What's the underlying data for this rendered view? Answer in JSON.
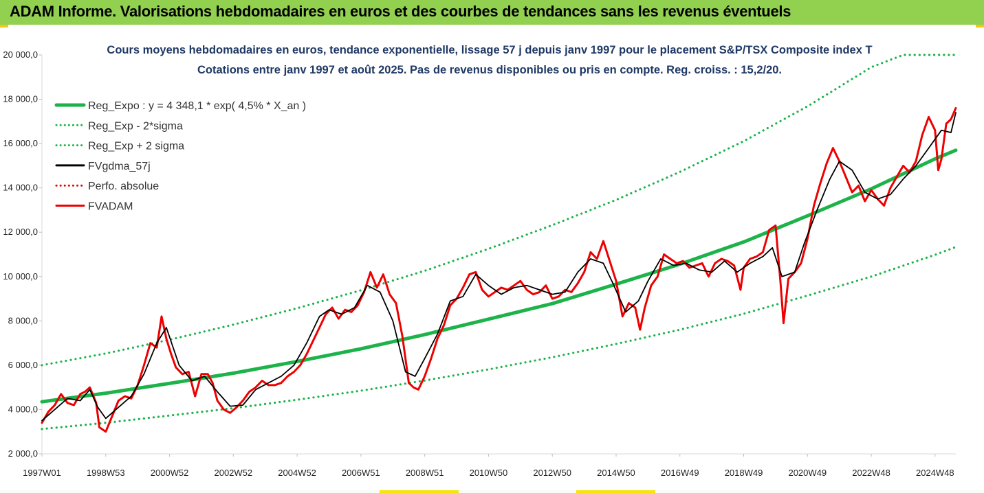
{
  "header": {
    "title": "ADAM Informe. Valorisations hebdomadaires en euros et des courbes de tendances sans les revenus éventuels"
  },
  "colors": {
    "header_bg": "#92d050",
    "trend": "#1db34a",
    "band": "#1db34a",
    "smooth": "#000000",
    "price": "#ee0000",
    "title": "#1f3864"
  },
  "chart_data": {
    "type": "line",
    "title": "Cours moyens hebdomadaires en euros, tendance exponentielle, lissage 57 j depuis janv 1997  pour le placement S&P/TSX Composite index T",
    "subtitle": "Cotations entre janv 1997 et août 2025. Pas de revenus disponibles ou pris en compte. Reg. croiss. : 15,2/20.",
    "xlabel": "",
    "ylabel": "",
    "xlim": [
      1997.0,
      2025.65
    ],
    "ylim": [
      2000,
      20000
    ],
    "yticks": [
      "2 000,0",
      "4 000,0",
      "6 000,0",
      "8 000,0",
      "10 000,0",
      "12 000,0",
      "14 000,0",
      "16 000,0",
      "18 000,0",
      "20 000,0"
    ],
    "ytick_values": [
      2000,
      4000,
      6000,
      8000,
      10000,
      12000,
      14000,
      16000,
      18000,
      20000
    ],
    "xticks": [
      "1997W01",
      "1998W53",
      "2000W52",
      "2002W52",
      "2004W52",
      "2006W51",
      "2008W51",
      "2010W50",
      "2012W50",
      "2014W50",
      "2016W49",
      "2018W49",
      "2020W49",
      "2022W48",
      "2024W48"
    ],
    "xtick_values": [
      1997.0,
      1999.0,
      2001.0,
      2003.0,
      2005.0,
      2007.0,
      2009.0,
      2011.0,
      2013.0,
      2015.0,
      2017.0,
      2019.0,
      2021.0,
      2023.0,
      2025.0
    ],
    "grid": false,
    "legend_position": "top-left",
    "legend": [
      "Reg_Expo : y = 4 348,1 * exp( 4,5% *  X_an )",
      "Reg_Exp - 2*sigma",
      "Reg_Exp + 2 sigma",
      "FVgdma_57j",
      "Perfo. absolue",
      "FVADAM"
    ],
    "series": [
      {
        "name": "Reg_Expo : y = 4 348,1 * exp( 4,5% *  X_an )",
        "style": "solid-thick",
        "color": "#1db34a",
        "x": [
          1997,
          1999,
          2001,
          2003,
          2005,
          2007,
          2009,
          2011,
          2013,
          2015,
          2017,
          2019,
          2021,
          2023,
          2025,
          2025.65
        ],
        "y": [
          4350,
          4740,
          5180,
          5640,
          6170,
          6740,
          7380,
          8080,
          8780,
          9660,
          10560,
          11560,
          12740,
          13960,
          15310,
          15700
        ]
      },
      {
        "name": "Reg_Exp - 2*sigma",
        "style": "dotted",
        "color": "#1db34a",
        "x": [
          1997,
          1999,
          2001,
          2003,
          2005,
          2007,
          2009,
          2011,
          2013,
          2015,
          2017,
          2019,
          2021,
          2023,
          2025,
          2025.65
        ],
        "y": [
          3120,
          3400,
          3730,
          4060,
          4440,
          4850,
          5310,
          5810,
          6360,
          6960,
          7600,
          8320,
          9140,
          10000,
          10980,
          11330
        ]
      },
      {
        "name": "Reg_Exp + 2 sigma",
        "style": "dotted",
        "color": "#1db34a",
        "x": [
          1997,
          1999,
          2001,
          2003,
          2005,
          2007,
          2009,
          2011,
          2013,
          2015,
          2017,
          2019,
          2021,
          2022,
          2023,
          2024,
          2025,
          2025.65
        ],
        "y": [
          6000,
          6530,
          7150,
          7830,
          8570,
          9380,
          10260,
          11250,
          12320,
          13460,
          14720,
          16110,
          17680,
          18560,
          19450,
          20000,
          20000,
          20000
        ]
      },
      {
        "name": "FVgdma_57j",
        "style": "solid",
        "color": "#000000",
        "x": [
          1997.0,
          1997.4,
          1997.8,
          1998.2,
          1998.5,
          1998.75,
          1999.0,
          1999.4,
          1999.8,
          2000.2,
          2000.6,
          2000.9,
          2001.3,
          2001.7,
          2002.1,
          2002.5,
          2002.9,
          2003.3,
          2003.7,
          2004.1,
          2004.5,
          2004.9,
          2005.3,
          2005.7,
          2006.0,
          2006.4,
          2006.8,
          2007.2,
          2007.6,
          2008.0,
          2008.4,
          2008.7,
          2009.0,
          2009.4,
          2009.8,
          2010.2,
          2010.6,
          2011.0,
          2011.4,
          2011.8,
          2012.2,
          2012.6,
          2013.0,
          2013.4,
          2013.8,
          2014.2,
          2014.6,
          2014.9,
          2015.3,
          2015.7,
          2016.0,
          2016.4,
          2016.8,
          2017.2,
          2017.6,
          2018.0,
          2018.4,
          2018.8,
          2019.2,
          2019.6,
          2019.9,
          2020.2,
          2020.6,
          2020.9,
          2021.3,
          2021.7,
          2022.0,
          2022.4,
          2022.8,
          2023.2,
          2023.6,
          2024.0,
          2024.4,
          2024.8,
          2025.2,
          2025.5,
          2025.65
        ],
        "y": [
          3500,
          4000,
          4500,
          4400,
          4900,
          4100,
          3600,
          4100,
          4600,
          5600,
          7000,
          7700,
          6000,
          5300,
          5500,
          4800,
          4150,
          4200,
          4900,
          5200,
          5500,
          6000,
          7000,
          8200,
          8500,
          8300,
          8600,
          9600,
          9300,
          8000,
          5700,
          5500,
          6300,
          7400,
          8900,
          9100,
          10100,
          9600,
          9200,
          9500,
          9600,
          9400,
          9200,
          9300,
          10200,
          10800,
          10600,
          9700,
          8400,
          8900,
          9800,
          10800,
          10500,
          10600,
          10300,
          10200,
          10700,
          10200,
          10600,
          10900,
          11300,
          10000,
          10200,
          11500,
          13000,
          14400,
          15200,
          14800,
          13800,
          13500,
          13700,
          14400,
          15000,
          15800,
          16600,
          16500,
          17400
        ]
      },
      {
        "name": "Perfo. absolue",
        "style": "dotted",
        "color": "#ee0000",
        "x": [],
        "y": []
      },
      {
        "name": "FVADAM",
        "style": "solid-thick",
        "color": "#ee0000",
        "x": [
          1997.0,
          1997.2,
          1997.4,
          1997.6,
          1997.8,
          1998.0,
          1998.2,
          1998.35,
          1998.5,
          1998.7,
          1998.8,
          1999.0,
          1999.2,
          1999.4,
          1999.6,
          1999.8,
          2000.0,
          2000.2,
          2000.4,
          2000.6,
          2000.75,
          2000.9,
          2001.05,
          2001.2,
          2001.4,
          2001.6,
          2001.8,
          2002.0,
          2002.2,
          2002.35,
          2002.5,
          2002.7,
          2002.9,
          2003.1,
          2003.3,
          2003.5,
          2003.7,
          2003.9,
          2004.1,
          2004.3,
          2004.5,
          2004.7,
          2004.9,
          2005.1,
          2005.3,
          2005.5,
          2005.7,
          2005.9,
          2006.1,
          2006.3,
          2006.5,
          2006.7,
          2006.9,
          2007.1,
          2007.3,
          2007.5,
          2007.7,
          2007.9,
          2008.1,
          2008.3,
          2008.5,
          2008.65,
          2008.8,
          2009.0,
          2009.2,
          2009.4,
          2009.6,
          2009.8,
          2010.0,
          2010.2,
          2010.4,
          2010.6,
          2010.8,
          2011.0,
          2011.2,
          2011.4,
          2011.6,
          2011.8,
          2012.0,
          2012.2,
          2012.4,
          2012.6,
          2012.8,
          2013.0,
          2013.2,
          2013.4,
          2013.6,
          2013.8,
          2014.0,
          2014.2,
          2014.4,
          2014.6,
          2014.8,
          2015.0,
          2015.2,
          2015.4,
          2015.6,
          2015.75,
          2015.9,
          2016.1,
          2016.3,
          2016.5,
          2016.7,
          2016.9,
          2017.1,
          2017.3,
          2017.5,
          2017.7,
          2017.9,
          2018.1,
          2018.3,
          2018.5,
          2018.7,
          2018.9,
          2019.0,
          2019.2,
          2019.4,
          2019.6,
          2019.8,
          2020.0,
          2020.15,
          2020.25,
          2020.4,
          2020.6,
          2020.8,
          2021.0,
          2021.2,
          2021.4,
          2021.6,
          2021.8,
          2022.0,
          2022.2,
          2022.4,
          2022.6,
          2022.8,
          2023.0,
          2023.2,
          2023.4,
          2023.6,
          2023.8,
          2024.0,
          2024.2,
          2024.4,
          2024.6,
          2024.8,
          2025.0,
          2025.1,
          2025.2,
          2025.35,
          2025.5,
          2025.65
        ],
        "y": [
          3400,
          3900,
          4200,
          4700,
          4300,
          4200,
          4700,
          4800,
          5000,
          4300,
          3200,
          3000,
          3700,
          4400,
          4600,
          4500,
          5100,
          6000,
          7000,
          6800,
          8200,
          7200,
          6500,
          5900,
          5600,
          5700,
          4600,
          5600,
          5600,
          5200,
          4400,
          4000,
          3850,
          4100,
          4400,
          4800,
          5000,
          5300,
          5100,
          5100,
          5200,
          5500,
          5700,
          6000,
          6500,
          7100,
          7700,
          8300,
          8600,
          8100,
          8500,
          8400,
          8700,
          9300,
          10200,
          9500,
          10100,
          9200,
          8800,
          7300,
          5200,
          5000,
          4900,
          5500,
          6300,
          7200,
          7800,
          8700,
          9000,
          9500,
          10100,
          10200,
          9400,
          9100,
          9300,
          9500,
          9400,
          9600,
          9800,
          9400,
          9200,
          9300,
          9600,
          9000,
          9100,
          9400,
          9300,
          9700,
          10200,
          11100,
          10800,
          11600,
          10700,
          9800,
          8200,
          8800,
          8600,
          7600,
          8600,
          9600,
          10000,
          11000,
          10800,
          10600,
          10700,
          10400,
          10500,
          10600,
          10000,
          10600,
          10800,
          10700,
          10500,
          9400,
          10400,
          10800,
          10900,
          11100,
          12100,
          12300,
          9800,
          7900,
          9900,
          10200,
          10600,
          11700,
          13200,
          14200,
          15100,
          15800,
          15200,
          14500,
          13800,
          14100,
          13400,
          13900,
          13500,
          13200,
          14000,
          14500,
          15000,
          14700,
          15200,
          16400,
          17200,
          16600,
          14800,
          15300,
          16900,
          17100,
          17600
        ]
      }
    ]
  }
}
